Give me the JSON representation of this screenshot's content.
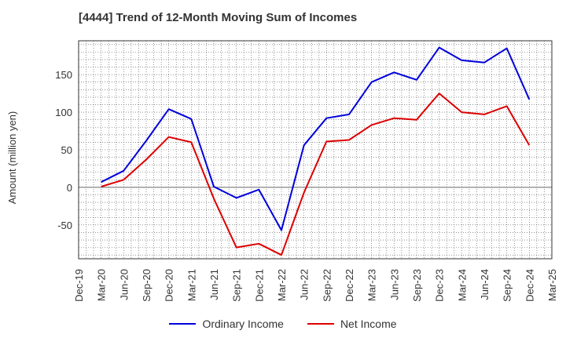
{
  "chart_data": {
    "type": "line",
    "title": "[4444]  Trend of 12-Month Moving Sum of Incomes",
    "ylabel": "Amount (million yen)",
    "xlabel": "",
    "ylim": [
      -95,
      195
    ],
    "yticks": [
      -50,
      0,
      50,
      100,
      150
    ],
    "tick_labels": [
      "Dec-19",
      "Mar-20",
      "Jun-20",
      "Sep-20",
      "Dec-20",
      "Mar-21",
      "Jun-21",
      "Sep-21",
      "Dec-21",
      "Mar-22",
      "Jun-22",
      "Sep-22",
      "Dec-22",
      "Mar-23",
      "Jun-23",
      "Sep-23",
      "Dec-23",
      "Mar-24",
      "Jun-24",
      "Sep-24",
      "Dec-24",
      "Mar-25"
    ],
    "x": [
      "Mar-20",
      "Jun-20",
      "Sep-20",
      "Dec-20",
      "Mar-21",
      "Jun-21",
      "Sep-21",
      "Dec-21",
      "Mar-22",
      "Jun-22",
      "Sep-22",
      "Dec-22",
      "Mar-23",
      "Jun-23",
      "Sep-23",
      "Dec-23",
      "Mar-24",
      "Jun-24",
      "Sep-24",
      "Dec-24"
    ],
    "grid": true,
    "legend_position": "bottom",
    "series": [
      {
        "name": "Ordinary Income",
        "color": "#0000dd",
        "values": [
          7,
          22,
          62,
          104,
          91,
          1,
          -14,
          -3,
          -57,
          56,
          92,
          97,
          140,
          153,
          143,
          186,
          169,
          166,
          185,
          117
        ]
      },
      {
        "name": "Net Income",
        "color": "#dd0000",
        "values": [
          1,
          10,
          37,
          67,
          60,
          -15,
          -80,
          -75,
          -90,
          -7,
          61,
          63,
          83,
          92,
          90,
          125,
          100,
          97,
          108,
          56
        ]
      }
    ]
  }
}
